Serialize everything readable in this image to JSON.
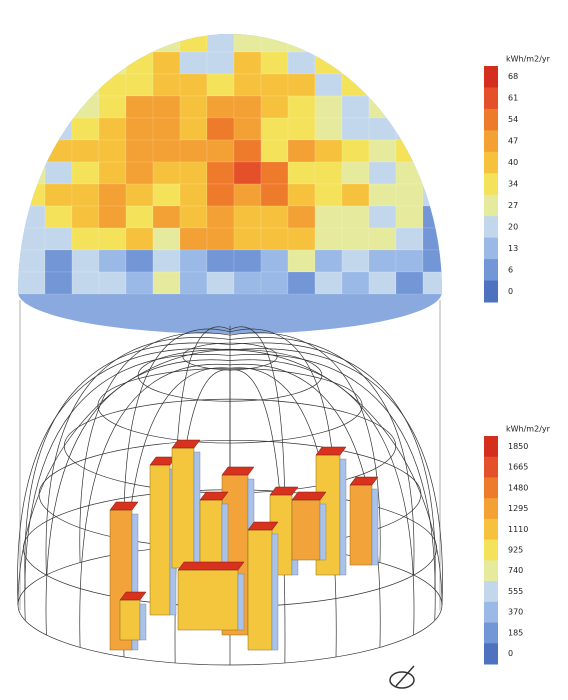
{
  "legends": [
    {
      "title": "kWh/m2/yr",
      "ticks": [
        "68",
        "61",
        "54",
        "47",
        "40",
        "34",
        "27",
        "20",
        "13",
        "6",
        "0"
      ]
    },
    {
      "title": "kWh/m2/yr",
      "ticks": [
        "1850",
        "1665",
        "1480",
        "1295",
        "1110",
        "925",
        "740",
        "555",
        "370",
        "185",
        "0"
      ]
    }
  ]
}
